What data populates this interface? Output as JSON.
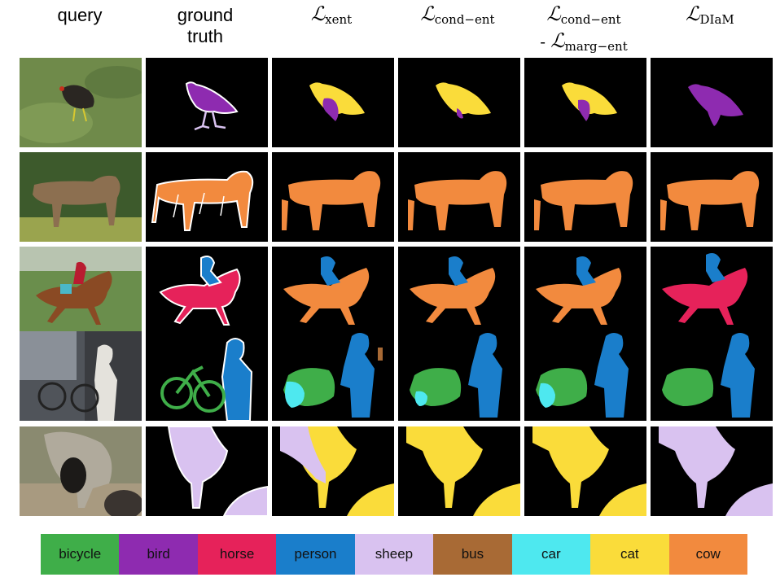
{
  "headers": {
    "query": "query",
    "gt_line1": "ground",
    "gt_line2": "truth",
    "xent_sub": "xent",
    "cond_sub": "cond−ent",
    "cond2_sub": "cond−ent",
    "marg_prefix": "- ",
    "marg_sub": "marg−ent",
    "diam_sub": "DIaM"
  },
  "script_L": "ℒ",
  "legend": [
    {
      "label": "bicycle",
      "color": "#3fae49"
    },
    {
      "label": "bird",
      "color": "#8e2bb0"
    },
    {
      "label": "horse",
      "color": "#e6225a"
    },
    {
      "label": "person",
      "color": "#1a7ecb"
    },
    {
      "label": "sheep",
      "color": "#d9c2f0"
    },
    {
      "label": "bus",
      "color": "#a86a35"
    },
    {
      "label": "car",
      "color": "#4ee8ef"
    },
    {
      "label": "cat",
      "color": "#fadc3a"
    },
    {
      "label": "cow",
      "color": "#f28a3e"
    }
  ]
}
